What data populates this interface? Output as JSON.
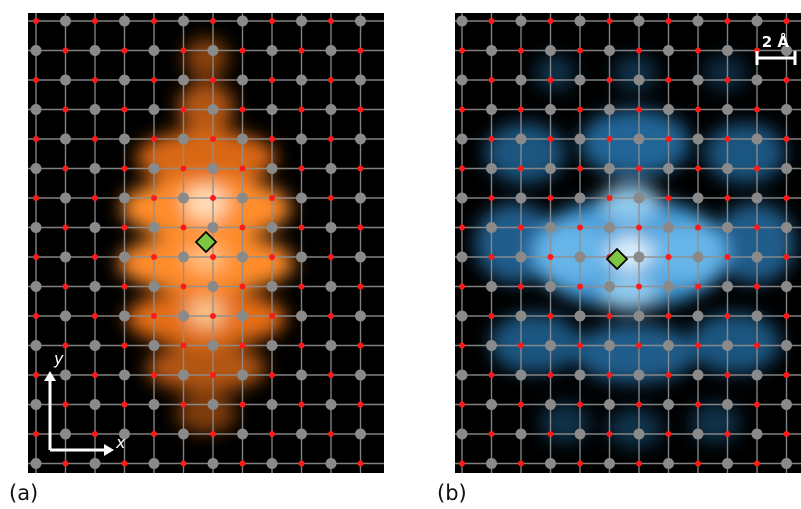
{
  "panels": [
    {
      "id": "a",
      "label": "(a)",
      "colormap": "orange",
      "axes": {
        "x": "x",
        "y": "y"
      }
    },
    {
      "id": "b",
      "label": "(b)",
      "colormap": "blue",
      "scale_bar": "2 Å"
    }
  ],
  "colors": {
    "atom_red": "#ff1a1a",
    "atom_gray": "#8a8a8a",
    "grid_line": "#8f8f8f",
    "marker": "#7ec63f",
    "orange": "#ff7a1a",
    "blue": "#2e8fd6"
  },
  "icons": [
    "diamond-marker-icon",
    "axis-arrow-icon",
    "scale-bar-icon"
  ]
}
